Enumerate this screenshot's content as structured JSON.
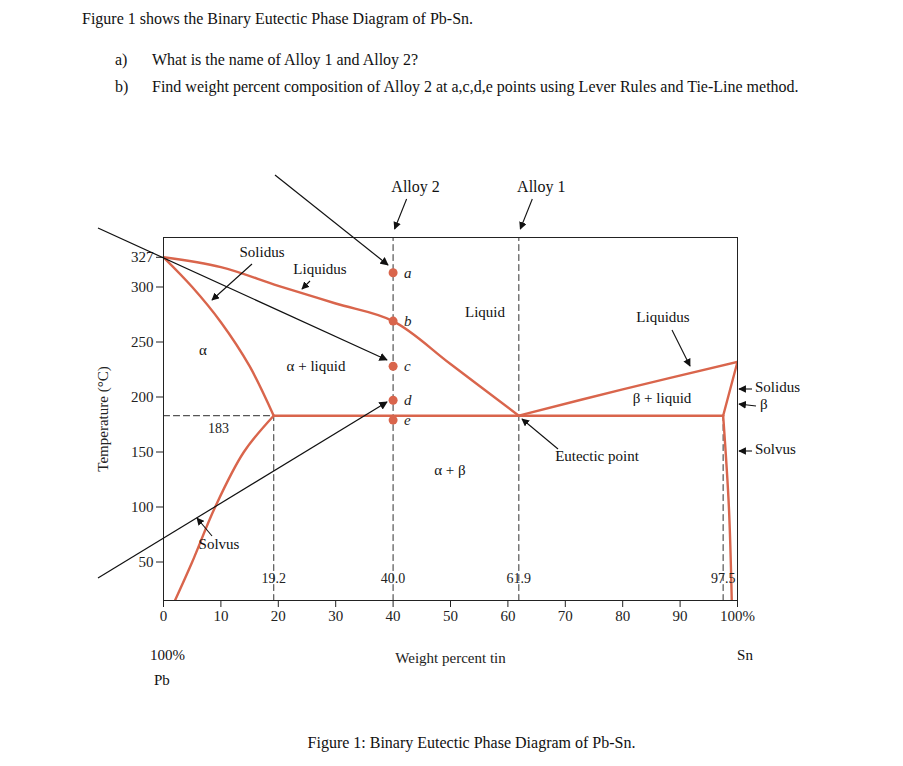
{
  "document": {
    "intro": "Figure 1 shows the Binary Eutectic Phase Diagram of Pb-Sn.",
    "questions": [
      {
        "label": "a)",
        "text": "What is the name of Alloy 1 and Alloy 2?"
      },
      {
        "label": "b)",
        "text": "Find weight percent composition of Alloy 2 at a,c,d,e points using Lever Rules and Tie-Line method."
      }
    ],
    "caption": "Figure 1: Binary Eutectic Phase Diagram of Pb-Sn."
  },
  "chart_data": {
    "type": "line",
    "xlabel": "Weight percent tin",
    "ylabel": "Temperature (°C)",
    "xlim": [
      0,
      100
    ],
    "ylim": [
      15,
      345
    ],
    "xticks": [
      0,
      10,
      20,
      30,
      40,
      50,
      60,
      70,
      80,
      90,
      {
        "value": 100,
        "label": "100%"
      }
    ],
    "yticks": [
      50,
      100,
      150,
      200,
      250,
      300,
      327
    ],
    "x_start_labels": [
      "100%",
      "Pb"
    ],
    "x_end_labels": [
      "Sn"
    ],
    "color": "#d9654c",
    "series": [
      {
        "x": [
          0,
          10,
          20,
          30,
          40,
          50,
          61.9
        ],
        "values": [
          327,
          318,
          301,
          285,
          269,
          230,
          183
        ]
      },
      {
        "x": [
          0,
          5,
          10,
          15,
          19.2
        ],
        "values": [
          327,
          300,
          268,
          228,
          183
        ]
      },
      {
        "x": [
          19.2,
          14,
          9,
          5,
          2
        ],
        "values": [
          183,
          150,
          100,
          50,
          15
        ]
      },
      {
        "x": [
          19.2,
          97.5
        ],
        "values": [
          183,
          183
        ]
      },
      {
        "x": [
          61.9,
          80,
          100
        ],
        "values": [
          183,
          207,
          232
        ]
      },
      {
        "x": [
          97.5,
          100
        ],
        "values": [
          183,
          232
        ]
      },
      {
        "x": [
          97.5,
          98.5,
          99
        ],
        "values": [
          183,
          100,
          15
        ]
      }
    ],
    "reference_lines": [
      {
        "x": [
          0,
          19.2
        ],
        "y": [
          183,
          183
        ],
        "label": "183",
        "line_style": "dashed"
      },
      {
        "x": [
          19.2,
          19.2
        ],
        "y": [
          15,
          183
        ],
        "label": "19.2",
        "line_style": "dashed"
      },
      {
        "name": "Alloy 2",
        "x": [
          40.0,
          40.0
        ],
        "y": [
          15,
          345
        ],
        "label": "40.0",
        "line_style": "dashed"
      },
      {
        "name": "Alloy 1",
        "x": [
          61.9,
          61.9
        ],
        "y": [
          15,
          345
        ],
        "label": "61.9",
        "line_style": "dashed"
      },
      {
        "x": [
          97.5,
          97.5
        ],
        "y": [
          15,
          183
        ],
        "label": "97.5",
        "line_style": "dashed"
      }
    ],
    "points": [
      {
        "label": "a",
        "x": 40,
        "y": 313
      },
      {
        "label": "b",
        "x": 40,
        "y": 269
      },
      {
        "label": "c",
        "x": 40,
        "y": 228
      },
      {
        "label": "d",
        "x": 40,
        "y": 197
      },
      {
        "label": "e",
        "x": 40,
        "y": 179
      }
    ],
    "annotations": [
      "Solidus",
      "Liquidus",
      "α",
      "α + liquid",
      "Liquid",
      "Liquidus",
      "β + liquid",
      "α + β",
      "Eutectic point",
      "Solidus",
      "β",
      "Solvus",
      "Solvus"
    ]
  }
}
